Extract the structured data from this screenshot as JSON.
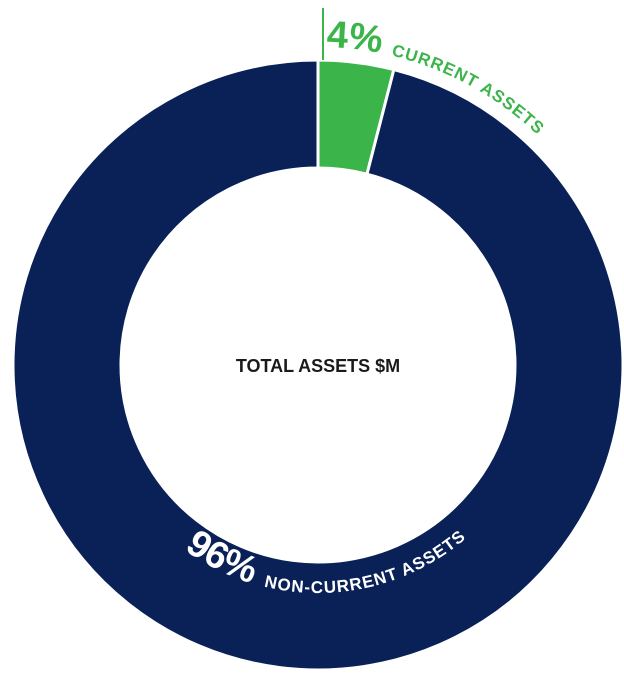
{
  "chart_data": {
    "type": "pie",
    "title": "TOTAL ASSETS $M",
    "categories": [
      "CURRENT ASSETS",
      "NON-CURRENT ASSETS"
    ],
    "values": [
      4,
      96
    ],
    "value_labels": [
      "4%",
      "96%"
    ],
    "colors": [
      "#3bb54a",
      "#0a2158"
    ],
    "donut": true
  }
}
